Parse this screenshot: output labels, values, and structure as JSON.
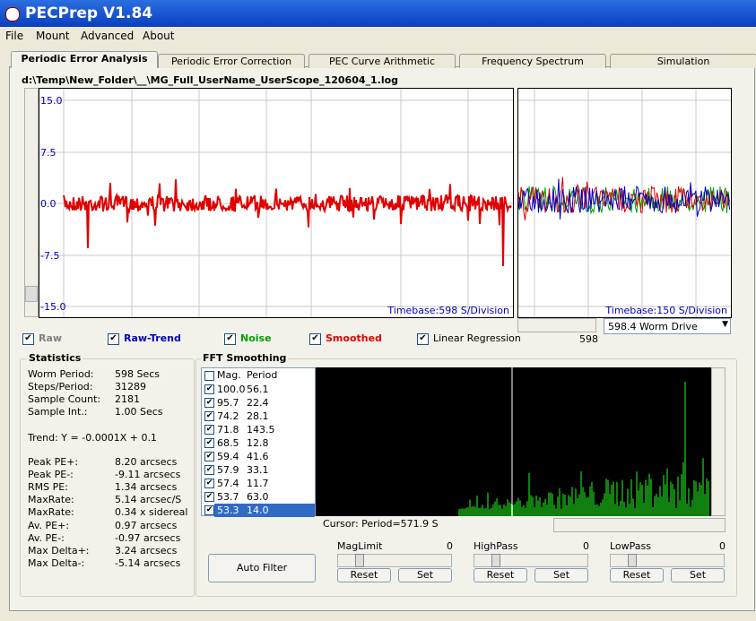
{
  "window": {
    "title": "PECPrep V1.84"
  },
  "menu": [
    "File",
    "Mount",
    "Advanced",
    "About"
  ],
  "tabs": [
    "Periodic Error Analysis",
    "Periodic Error Correction",
    "PEC Curve Arithmetic",
    "Frequency Spectrum",
    "Simulation"
  ],
  "file_path": "d:\\Temp\\New_Folder\\__\\MG_Full_UserName_UserScope_120604_1.log",
  "plot": {
    "y_labels": [
      "15.0",
      "7.5",
      "0.0",
      "-7.5",
      "-15.0"
    ],
    "main_timebase": "Timebase:598 S/Division",
    "worm_timebase": "Timebase:150 S/Division"
  },
  "worm_scroll_value": "598",
  "worm_select": "598.4 Worm Drive",
  "checkboxes": [
    {
      "label": "Raw",
      "checked": true,
      "color": "#808080"
    },
    {
      "label": "Raw-Trend",
      "checked": true,
      "color": "#0000c0"
    },
    {
      "label": "Noise",
      "checked": true,
      "color": "#00a000"
    },
    {
      "label": "Smoothed",
      "checked": true,
      "color": "#e00000"
    },
    {
      "label": "Linear Regression",
      "checked": true,
      "color": "#000000"
    }
  ],
  "statistics": {
    "title": "Statistics",
    "rows": [
      [
        "Worm Period:",
        "598 Secs"
      ],
      [
        "Steps/Period:",
        "31289"
      ],
      [
        "Sample Count:",
        "2181"
      ],
      [
        "Sample Int.:",
        "1.00 Secs"
      ]
    ],
    "trend": "Trend: Y = -0.0001X + 0.1",
    "rows2": [
      [
        "Peak PE+:",
        "8.20 arcsecs"
      ],
      [
        "Peak PE-:",
        "-9.11 arcsecs"
      ],
      [
        "RMS PE:",
        "1.34 arcsecs"
      ],
      [
        "MaxRate:",
        "5.14 arcsec/S"
      ],
      [
        "MaxRate:",
        "0.34 x sidereal"
      ],
      [
        "Av. PE+:",
        "0.97 arcsecs"
      ],
      [
        "Av. PE-:",
        "-0.97 arcsecs"
      ],
      [
        "Max Delta+:",
        "3.24 arcsecs"
      ],
      [
        "Max Delta-:",
        "-5.14 arcsecs"
      ]
    ]
  },
  "fft": {
    "title": "FFT Smoothing",
    "headers": [
      "Mag.",
      "Period"
    ],
    "rows": [
      [
        "100.0",
        "56.1"
      ],
      [
        "95.7",
        "22.4"
      ],
      [
        "74.2",
        "28.1"
      ],
      [
        "71.8",
        "143.5"
      ],
      [
        "68.5",
        "12.8"
      ],
      [
        "59.4",
        "41.6"
      ],
      [
        "57.9",
        "33.1"
      ],
      [
        "57.4",
        "11.7"
      ],
      [
        "53.7",
        "63.0"
      ],
      [
        "53.3",
        "14.0"
      ]
    ],
    "selected_row": 9,
    "cursor": "Cursor: Period=571.9 S",
    "sliders": [
      {
        "label": "MagLimit",
        "value": "0"
      },
      {
        "label": "HighPass",
        "value": "0"
      },
      {
        "label": "LowPass",
        "value": "0"
      }
    ],
    "auto_filter": "Auto Filter",
    "reset": "Reset",
    "set": "Set"
  }
}
